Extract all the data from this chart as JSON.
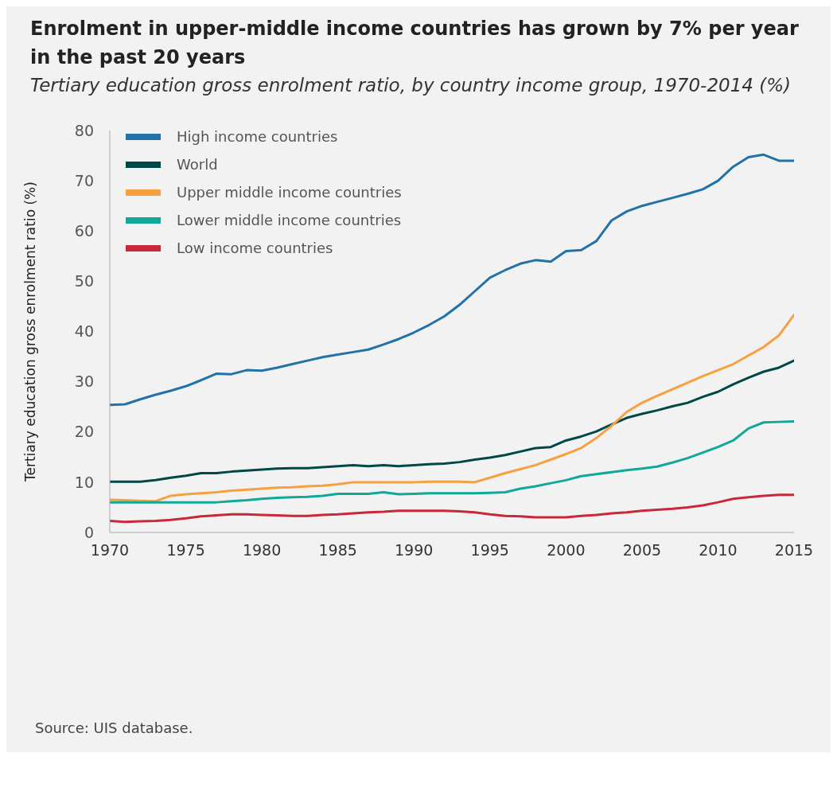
{
  "chart_data": {
    "type": "line",
    "title": "Enrolment in upper-middle income countries has grown by 7% per year in the past 20 years",
    "subtitle": "Tertiary education gross enrolment ratio, by country income group, 1970-2014 (%)",
    "ylabel": "Tertiary education gross enrolment ratio (%)",
    "annotations": [
      "Source: UIS database."
    ],
    "x": [
      1970,
      1971,
      1972,
      1973,
      1974,
      1975,
      1976,
      1977,
      1978,
      1979,
      1980,
      1981,
      1982,
      1983,
      1984,
      1985,
      1986,
      1987,
      1988,
      1989,
      1990,
      1991,
      1992,
      1993,
      1994,
      1995,
      1996,
      1997,
      1998,
      1999,
      2000,
      2001,
      2002,
      2003,
      2004,
      2005,
      2006,
      2007,
      2008,
      2009,
      2010,
      2011,
      2012,
      2013,
      2014,
      2015
    ],
    "series": [
      {
        "name": "High income countries",
        "color": "#2272a8",
        "values": [
          25.4,
          25.5,
          26.5,
          27.4,
          28.2,
          29.1,
          30.3,
          31.6,
          31.5,
          32.3,
          32.2,
          32.8,
          33.5,
          34.2,
          34.9,
          35.4,
          35.9,
          36.4,
          37.4,
          38.5,
          39.8,
          41.3,
          43.0,
          45.3,
          48.0,
          50.7,
          52.2,
          53.5,
          54.2,
          53.9,
          56.0,
          56.2,
          58.0,
          62.1,
          63.9,
          65.0,
          65.8,
          66.6,
          67.4,
          68.3,
          70.0,
          72.8,
          74.7,
          75.2,
          74.0,
          74.0
        ]
      },
      {
        "name": "World",
        "color": "#004848",
        "values": [
          10.1,
          10.1,
          10.1,
          10.4,
          10.9,
          11.3,
          11.8,
          11.8,
          12.1,
          12.3,
          12.5,
          12.7,
          12.8,
          12.8,
          13.0,
          13.2,
          13.4,
          13.2,
          13.4,
          13.2,
          13.4,
          13.6,
          13.7,
          14.0,
          14.5,
          14.9,
          15.4,
          16.1,
          16.8,
          17.0,
          18.3,
          19.1,
          20.1,
          21.5,
          22.8,
          23.6,
          24.3,
          25.1,
          25.8,
          27.0,
          28.0,
          29.5,
          30.8,
          32.0,
          32.8,
          34.2
        ]
      },
      {
        "name": "Upper middle income countries",
        "color": "#f7a040",
        "values": [
          6.5,
          6.4,
          6.3,
          6.2,
          7.3,
          7.6,
          7.8,
          8.0,
          8.3,
          8.5,
          8.7,
          8.9,
          9.0,
          9.2,
          9.3,
          9.6,
          10.0,
          10.0,
          10.0,
          10.0,
          10.0,
          10.1,
          10.1,
          10.1,
          10.0,
          10.9,
          11.8,
          12.6,
          13.4,
          14.5,
          15.6,
          16.8,
          18.8,
          21.2,
          24.0,
          25.8,
          27.2,
          28.5,
          29.8,
          31.1,
          32.3,
          33.5,
          35.2,
          36.9,
          39.2,
          43.3
        ]
      },
      {
        "name": "Lower middle income countries",
        "color": "#10a898",
        "values": [
          6.0,
          6.0,
          6.0,
          6.0,
          6.0,
          6.0,
          6.0,
          6.0,
          6.2,
          6.4,
          6.7,
          6.9,
          7.0,
          7.1,
          7.3,
          7.7,
          7.7,
          7.7,
          8.0,
          7.6,
          7.7,
          7.8,
          7.8,
          7.8,
          7.8,
          7.9,
          8.0,
          8.7,
          9.2,
          9.8,
          10.4,
          11.2,
          11.6,
          12.0,
          12.4,
          12.7,
          13.1,
          13.9,
          14.8,
          15.9,
          17.0,
          18.3,
          20.7,
          21.9,
          22.0,
          22.1
        ]
      },
      {
        "name": "Low income countries",
        "color": "#c8283a",
        "values": [
          2.3,
          2.1,
          2.2,
          2.3,
          2.5,
          2.8,
          3.2,
          3.4,
          3.6,
          3.6,
          3.5,
          3.4,
          3.3,
          3.3,
          3.5,
          3.6,
          3.8,
          4.0,
          4.1,
          4.3,
          4.3,
          4.3,
          4.3,
          4.2,
          4.0,
          3.6,
          3.3,
          3.2,
          3.0,
          3.0,
          3.0,
          3.3,
          3.5,
          3.8,
          4.0,
          4.3,
          4.5,
          4.7,
          5.0,
          5.4,
          6.0,
          6.7,
          7.0,
          7.3,
          7.5,
          7.5
        ]
      }
    ],
    "xlim": [
      1970,
      2015
    ],
    "xticks": [
      1970,
      1975,
      1980,
      1985,
      1990,
      1995,
      2000,
      2005,
      2010,
      2015
    ],
    "ylim": [
      0,
      80
    ],
    "yticks": [
      0,
      10,
      20,
      30,
      40,
      50,
      60,
      70,
      80
    ],
    "grid": false,
    "legend": "top left",
    "marker": "none",
    "line_style": "solid"
  }
}
